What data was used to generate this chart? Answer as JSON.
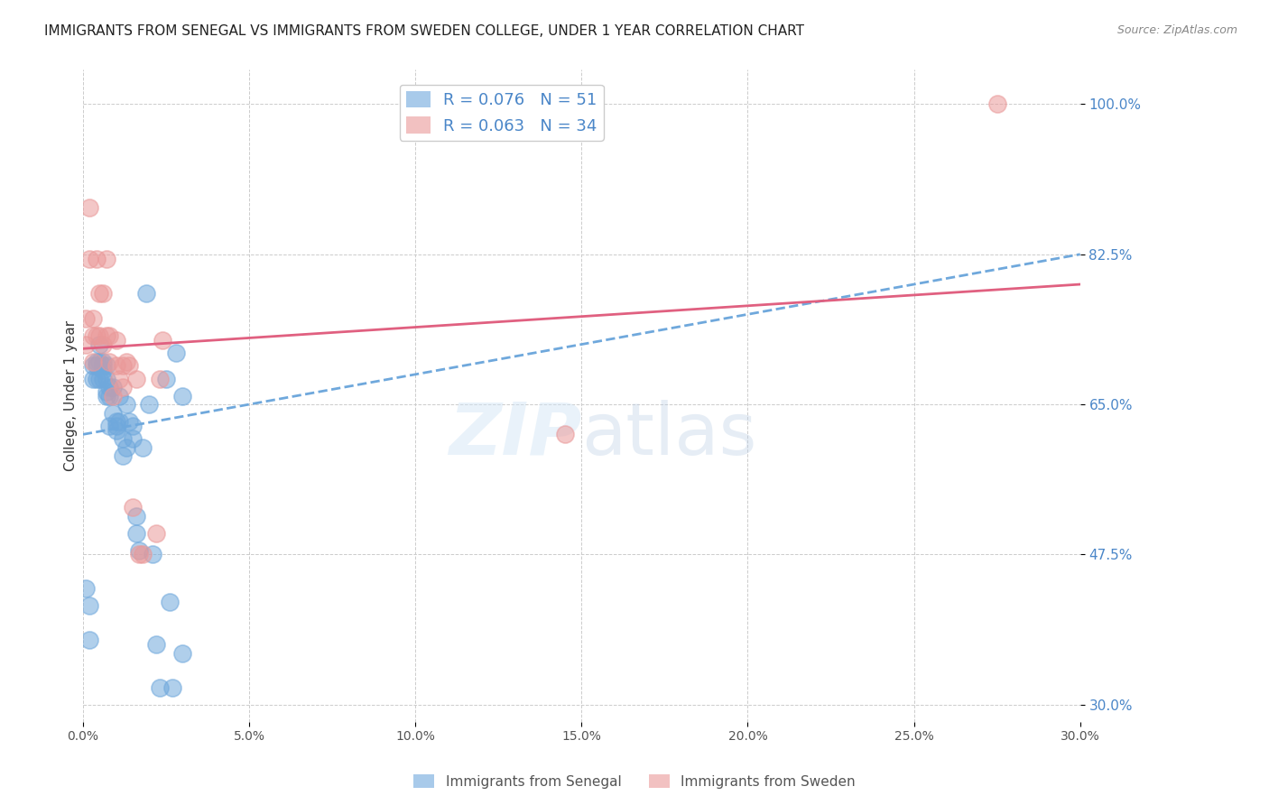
{
  "title": "IMMIGRANTS FROM SENEGAL VS IMMIGRANTS FROM SWEDEN COLLEGE, UNDER 1 YEAR CORRELATION CHART",
  "source": "Source: ZipAtlas.com",
  "ylabel": "College, Under 1 year",
  "xlim": [
    0.0,
    0.3
  ],
  "ylim": [
    0.28,
    1.04
  ],
  "xticks": [
    0.0,
    0.05,
    0.1,
    0.15,
    0.2,
    0.25,
    0.3
  ],
  "xticklabels": [
    "0.0%",
    "5.0%",
    "10.0%",
    "15.0%",
    "20.0%",
    "25.0%",
    "30.0%"
  ],
  "yticks": [
    0.3,
    0.475,
    0.65,
    0.825,
    1.0
  ],
  "yticklabels": [
    "30.0%",
    "47.5%",
    "65.0%",
    "82.5%",
    "100.0%"
  ],
  "senegal_color": "#6fa8dc",
  "sweden_color": "#ea9999",
  "senegal_line_color": "#6fa8dc",
  "sweden_line_color": "#e06080",
  "senegal_R": 0.076,
  "senegal_N": 51,
  "sweden_R": 0.063,
  "sweden_N": 34,
  "legend_label_senegal": "Immigrants from Senegal",
  "legend_label_sweden": "Immigrants from Sweden",
  "senegal_x": [
    0.001,
    0.002,
    0.002,
    0.003,
    0.003,
    0.004,
    0.004,
    0.004,
    0.005,
    0.005,
    0.005,
    0.006,
    0.006,
    0.006,
    0.006,
    0.007,
    0.007,
    0.007,
    0.007,
    0.008,
    0.008,
    0.008,
    0.009,
    0.009,
    0.01,
    0.01,
    0.01,
    0.011,
    0.011,
    0.012,
    0.012,
    0.013,
    0.013,
    0.014,
    0.015,
    0.015,
    0.016,
    0.016,
    0.017,
    0.018,
    0.019,
    0.02,
    0.021,
    0.022,
    0.023,
    0.025,
    0.026,
    0.027,
    0.028,
    0.03,
    0.03
  ],
  "senegal_y": [
    0.435,
    0.415,
    0.375,
    0.695,
    0.68,
    0.7,
    0.695,
    0.68,
    0.72,
    0.7,
    0.68,
    0.7,
    0.695,
    0.69,
    0.68,
    0.695,
    0.68,
    0.665,
    0.66,
    0.67,
    0.66,
    0.625,
    0.67,
    0.64,
    0.625,
    0.62,
    0.63,
    0.66,
    0.63,
    0.61,
    0.59,
    0.65,
    0.6,
    0.63,
    0.625,
    0.61,
    0.52,
    0.5,
    0.48,
    0.6,
    0.78,
    0.65,
    0.475,
    0.37,
    0.32,
    0.68,
    0.42,
    0.32,
    0.71,
    0.66,
    0.36
  ],
  "sweden_x": [
    0.001,
    0.001,
    0.002,
    0.002,
    0.003,
    0.003,
    0.003,
    0.004,
    0.004,
    0.005,
    0.005,
    0.006,
    0.006,
    0.007,
    0.007,
    0.008,
    0.008,
    0.009,
    0.01,
    0.01,
    0.011,
    0.012,
    0.012,
    0.013,
    0.014,
    0.015,
    0.016,
    0.017,
    0.018,
    0.022,
    0.023,
    0.024,
    0.145,
    0.275
  ],
  "sweden_y": [
    0.75,
    0.72,
    0.88,
    0.82,
    0.75,
    0.73,
    0.7,
    0.82,
    0.73,
    0.78,
    0.73,
    0.78,
    0.72,
    0.82,
    0.73,
    0.73,
    0.7,
    0.66,
    0.725,
    0.695,
    0.68,
    0.695,
    0.67,
    0.7,
    0.695,
    0.53,
    0.68,
    0.475,
    0.475,
    0.5,
    0.68,
    0.725,
    0.615,
    1.0
  ],
  "senegal_line_x0": 0.0,
  "senegal_line_x1": 0.3,
  "senegal_line_y0": 0.615,
  "senegal_line_y1": 0.825,
  "sweden_line_x0": 0.0,
  "sweden_line_x1": 0.3,
  "sweden_line_y0": 0.715,
  "sweden_line_y1": 0.79,
  "background_color": "#ffffff",
  "grid_color": "#cccccc",
  "ytick_color": "#4a86c8",
  "title_fontsize": 11,
  "label_fontsize": 11,
  "tick_fontsize": 10,
  "legend_fontsize": 13
}
